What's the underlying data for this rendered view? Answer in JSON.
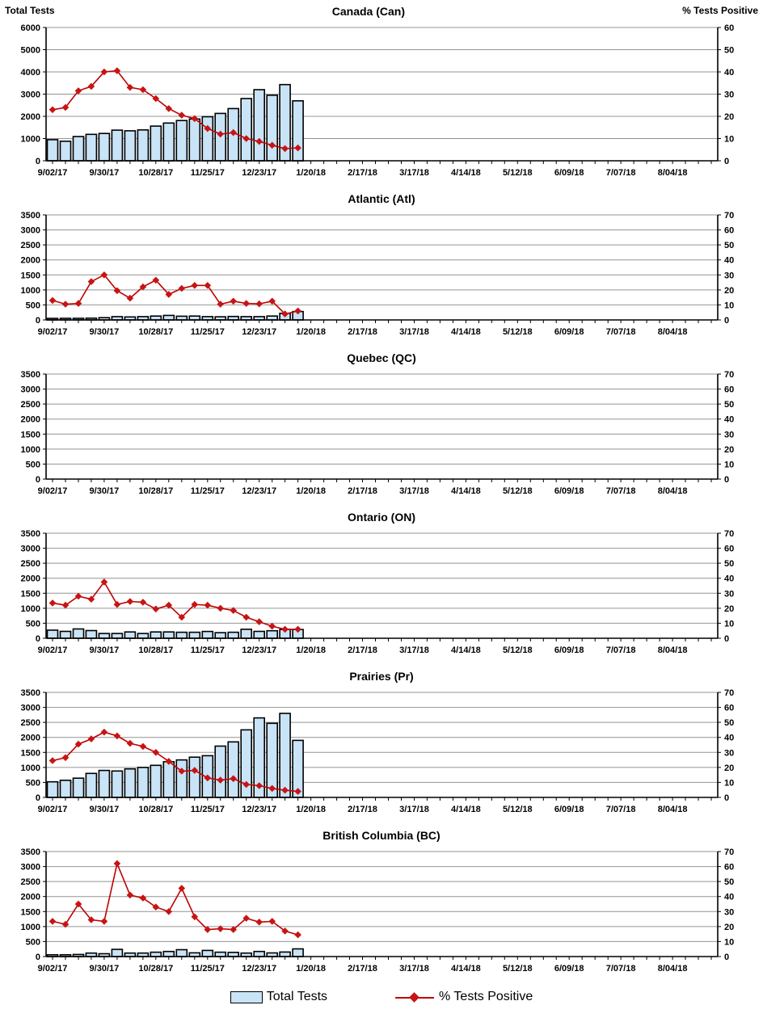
{
  "header": {
    "left_axis_label": "Total Tests",
    "right_axis_label": "% Tests Positive"
  },
  "legend": {
    "bar_label": "Total Tests",
    "line_label": "% Tests Positive"
  },
  "colors": {
    "bar_fill": "#C9E3F7",
    "bar_stroke": "#000000",
    "line": "#C00000",
    "marker": "#C71414",
    "grid": "#949494",
    "axis": "#000000",
    "text": "#000000"
  },
  "x_axis": {
    "tick_labels": [
      "9/02/17",
      "9/30/17",
      "10/28/17",
      "11/25/17",
      "12/23/17",
      "1/20/18",
      "2/17/18",
      "3/17/18",
      "4/14/18",
      "5/12/18",
      "6/09/18",
      "7/07/18",
      "8/04/18"
    ],
    "label_every_n_weeks": 4,
    "total_weeks": 52,
    "data_week_dates": [
      "9/02/17",
      "9/09/17",
      "9/16/17",
      "9/23/17",
      "9/30/17",
      "10/07/17",
      "10/14/17",
      "10/21/17",
      "10/28/17",
      "11/04/17",
      "11/11/17",
      "11/18/17",
      "11/25/17",
      "12/02/17",
      "12/09/17",
      "12/16/17",
      "12/23/17",
      "12/30/17",
      "1/06/18",
      "1/13/18"
    ]
  },
  "chart_data": [
    {
      "type": "bar+line",
      "title": "Canada (Can)",
      "left_axis": {
        "label": "Total Tests",
        "min": 0,
        "max": 6000,
        "step": 1000
      },
      "right_axis": {
        "label": "% Tests Positive",
        "min": 0,
        "max": 60,
        "step": 10
      },
      "total_tests": [
        950,
        880,
        1090,
        1190,
        1230,
        1380,
        1350,
        1390,
        1560,
        1700,
        1810,
        1880,
        1980,
        2130,
        2350,
        2800,
        3200,
        2950,
        3430,
        2700
      ],
      "pct_positive": [
        23,
        24,
        31.5,
        33.5,
        40,
        40.5,
        33,
        32,
        28,
        23.5,
        20.5,
        19,
        14.5,
        12,
        12.7,
        10,
        8.7,
        7,
        5.5,
        5.8
      ]
    },
    {
      "type": "bar+line",
      "title": "Atlantic (Atl)",
      "left_axis": {
        "label": "Total Tests",
        "min": 0,
        "max": 3500,
        "step": 500
      },
      "right_axis": {
        "label": "% Tests Positive",
        "min": 0,
        "max": 70,
        "step": 10
      },
      "total_tests": [
        50,
        55,
        55,
        60,
        75,
        110,
        100,
        110,
        130,
        150,
        125,
        130,
        110,
        105,
        115,
        110,
        110,
        130,
        220,
        280
      ],
      "pct_positive": [
        13,
        10.5,
        11,
        25.5,
        30,
        19.5,
        14.5,
        22,
        26.5,
        17,
        21,
        23,
        23,
        10.5,
        12.5,
        11,
        10.7,
        12.5,
        4,
        6
      ]
    },
    {
      "type": "bar+line",
      "title": "Quebec (QC)",
      "left_axis": {
        "label": "Total Tests",
        "min": 0,
        "max": 3500,
        "step": 500
      },
      "right_axis": {
        "label": "% Tests Positive",
        "min": 0,
        "max": 70,
        "step": 10
      },
      "total_tests": [],
      "pct_positive": []
    },
    {
      "type": "bar+line",
      "title": "Ontario (ON)",
      "left_axis": {
        "label": "Total Tests",
        "min": 0,
        "max": 3500,
        "step": 500
      },
      "right_axis": {
        "label": "% Tests Positive",
        "min": 0,
        "max": 70,
        "step": 10
      },
      "total_tests": [
        270,
        230,
        310,
        255,
        160,
        160,
        210,
        160,
        210,
        210,
        200,
        200,
        225,
        185,
        200,
        300,
        230,
        250,
        290,
        290
      ],
      "pct_positive": [
        23.5,
        22,
        28,
        26,
        37.5,
        22.5,
        24.5,
        24,
        19.5,
        22,
        14,
        22.5,
        22,
        20,
        18.5,
        14,
        11,
        8,
        6,
        6
      ]
    },
    {
      "type": "bar+line",
      "title": "Prairies (Pr)",
      "left_axis": {
        "label": "Total Tests",
        "min": 0,
        "max": 3500,
        "step": 500
      },
      "right_axis": {
        "label": "% Tests Positive",
        "min": 0,
        "max": 70,
        "step": 10
      },
      "total_tests": [
        520,
        570,
        640,
        800,
        900,
        880,
        950,
        1000,
        1070,
        1190,
        1250,
        1340,
        1390,
        1710,
        1850,
        2250,
        2650,
        2470,
        2800,
        1900
      ],
      "pct_positive": [
        24.5,
        26.5,
        35.5,
        39,
        43.5,
        41,
        36,
        34,
        30,
        24,
        17.5,
        18,
        13,
        11.5,
        12.5,
        8.6,
        7.8,
        6,
        4.8,
        4
      ]
    },
    {
      "type": "bar+line",
      "title": "British Columbia (BC)",
      "left_axis": {
        "label": "Total Tests",
        "min": 0,
        "max": 3500,
        "step": 500
      },
      "right_axis": {
        "label": "% Tests Positive",
        "min": 0,
        "max": 70,
        "step": 10
      },
      "total_tests": [
        60,
        60,
        70,
        115,
        95,
        240,
        115,
        115,
        145,
        170,
        230,
        125,
        205,
        145,
        140,
        115,
        170,
        120,
        150,
        255
      ],
      "pct_positive": [
        23.5,
        21.5,
        35,
        24.5,
        23.5,
        62,
        41,
        39,
        33,
        30,
        45.5,
        26.5,
        18,
        18.5,
        18,
        25.5,
        23,
        23.5,
        17,
        14.5
      ]
    }
  ]
}
